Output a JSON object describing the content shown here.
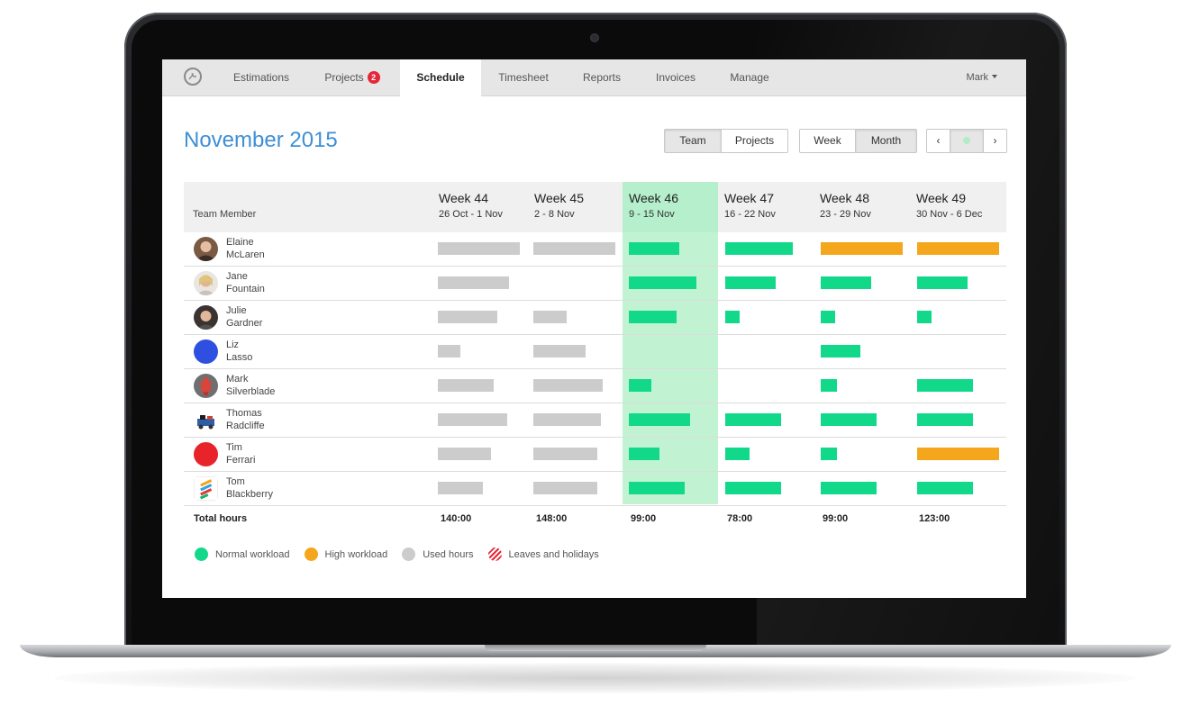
{
  "nav": {
    "items": [
      {
        "label": "Estimations"
      },
      {
        "label": "Projects",
        "badge": "2"
      },
      {
        "label": "Schedule",
        "active": true
      },
      {
        "label": "Timesheet"
      },
      {
        "label": "Reports"
      },
      {
        "label": "Invoices"
      },
      {
        "label": "Manage"
      }
    ],
    "user": "Mark"
  },
  "page": {
    "title": "November 2015",
    "view_toggle": [
      "Team",
      "Projects"
    ],
    "view_selected": "Team",
    "period_toggle": [
      "Week",
      "Month"
    ],
    "period_selected": "Month",
    "pager": {
      "prev": "‹",
      "next": "›"
    }
  },
  "table": {
    "member_header": "Team Member",
    "weeks": [
      {
        "title": "Week 44",
        "dates": "26 Oct - 1 Nov",
        "total": "140:00"
      },
      {
        "title": "Week 45",
        "dates": "2 - 8 Nov",
        "total": "148:00"
      },
      {
        "title": "Week 46",
        "dates": "9 - 15 Nov",
        "total": "99:00",
        "current": true
      },
      {
        "title": "Week 47",
        "dates": "16 - 22 Nov",
        "total": "78:00"
      },
      {
        "title": "Week 48",
        "dates": "23 - 29 Nov",
        "total": "99:00"
      },
      {
        "title": "Week 49",
        "dates": "30 Nov - 6 Dec",
        "total": "123:00"
      }
    ],
    "total_label": "Total hours",
    "members": [
      {
        "first": "Elaine",
        "last": "McLaren",
        "avatar": "photo",
        "bars": [
          {
            "type": "used",
            "fill": 1.0
          },
          {
            "type": "used",
            "fill": 1.0
          },
          {
            "type": "normal",
            "fill": 0.62
          },
          {
            "type": "normal",
            "fill": 0.82
          },
          {
            "type": "high",
            "fill": 1.0
          },
          {
            "type": "high",
            "fill": 1.0
          }
        ]
      },
      {
        "first": "Jane",
        "last": "Fountain",
        "avatar": "photo",
        "bars": [
          {
            "type": "used",
            "fill": 0.87
          },
          null,
          {
            "type": "normal",
            "fill": 0.82
          },
          {
            "type": "normal",
            "fill": 0.62
          },
          {
            "type": "normal",
            "fill": 0.62
          },
          {
            "type": "normal",
            "fill": 0.62
          }
        ]
      },
      {
        "first": "Julie",
        "last": "Gardner",
        "avatar": "photo",
        "bars": [
          {
            "type": "used",
            "fill": 0.73
          },
          {
            "type": "used",
            "fill": 0.41
          },
          {
            "type": "normal",
            "fill": 0.58
          },
          {
            "type": "normal",
            "fill": 0.18
          },
          {
            "type": "normal",
            "fill": 0.18
          },
          {
            "type": "normal",
            "fill": 0.18
          }
        ]
      },
      {
        "first": "Liz",
        "last": "Lasso",
        "avatar": "blue",
        "bars": [
          {
            "type": "used",
            "fill": 0.27
          },
          {
            "type": "used",
            "fill": 0.64
          },
          null,
          null,
          {
            "type": "normal",
            "fill": 0.48
          },
          null
        ]
      },
      {
        "first": "Mark",
        "last": "Silverblade",
        "avatar": "photo",
        "bars": [
          {
            "type": "used",
            "fill": 0.68
          },
          {
            "type": "used",
            "fill": 0.85
          },
          {
            "type": "normal",
            "fill": 0.28
          },
          null,
          {
            "type": "normal",
            "fill": 0.2
          },
          {
            "type": "normal",
            "fill": 0.68
          }
        ]
      },
      {
        "first": "Thomas",
        "last": "Radcliffe",
        "avatar": "photo",
        "bars": [
          {
            "type": "used",
            "fill": 0.85
          },
          {
            "type": "used",
            "fill": 0.82
          },
          {
            "type": "normal",
            "fill": 0.75
          },
          {
            "type": "normal",
            "fill": 0.68
          },
          {
            "type": "normal",
            "fill": 0.68
          },
          {
            "type": "normal",
            "fill": 0.68
          }
        ]
      },
      {
        "first": "Tim",
        "last": "Ferrari",
        "avatar": "red",
        "bars": [
          {
            "type": "used",
            "fill": 0.65
          },
          {
            "type": "used",
            "fill": 0.78
          },
          {
            "type": "normal",
            "fill": 0.37
          },
          {
            "type": "normal",
            "fill": 0.3
          },
          {
            "type": "normal",
            "fill": 0.2
          },
          {
            "type": "high",
            "fill": 1.0
          }
        ]
      },
      {
        "first": "Tom",
        "last": "Blackberry",
        "avatar": "logo",
        "bars": [
          {
            "type": "used",
            "fill": 0.55
          },
          {
            "type": "used",
            "fill": 0.78
          },
          {
            "type": "normal",
            "fill": 0.68
          },
          {
            "type": "normal",
            "fill": 0.68
          },
          {
            "type": "normal",
            "fill": 0.68
          },
          {
            "type": "normal",
            "fill": 0.68
          }
        ]
      }
    ]
  },
  "legend": [
    {
      "label": "Normal workload",
      "key": "normal"
    },
    {
      "label": "High workload",
      "key": "high"
    },
    {
      "label": "Used hours",
      "key": "used"
    },
    {
      "label": "Leaves and holidays",
      "key": "leave"
    }
  ],
  "colors": {
    "normal": "#12d98a",
    "high": "#f4a61d",
    "used": "#cccccc",
    "current_week": "#b6efcb",
    "title": "#3d8fd6",
    "badge": "#e5273a"
  }
}
